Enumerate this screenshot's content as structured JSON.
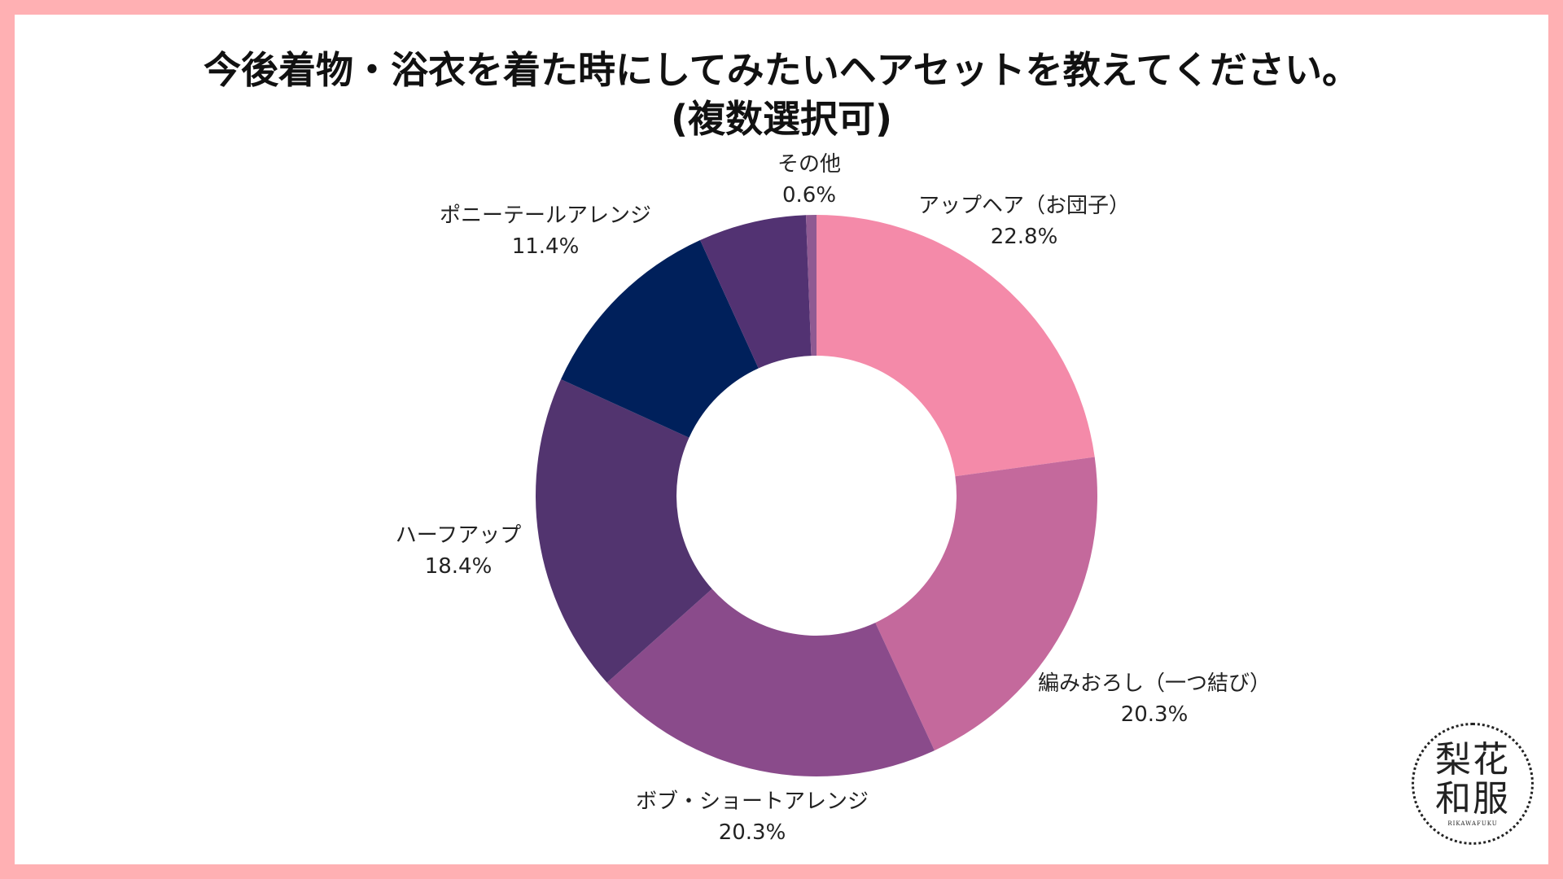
{
  "title": {
    "line1": "今後着物・浴衣を着た時にしてみたいヘアセットを教えてください。",
    "line2": "(複数選択可)"
  },
  "chart_data": {
    "type": "pie",
    "donut": true,
    "title": "今後着物・浴衣を着た時にしてみたいヘアセットを教えてください。(複数選択可)",
    "slices": [
      {
        "label": "アップヘア（お団子）",
        "value": 22.8,
        "value_label": "22.8%",
        "color": "#f48aa9"
      },
      {
        "label": "編みおろし（一つ結び）",
        "value": 20.3,
        "value_label": "20.3%",
        "color": "#c4699c"
      },
      {
        "label": "ボブ・ショートアレンジ",
        "value": 20.3,
        "value_label": "20.3%",
        "color": "#8a4b8b"
      },
      {
        "label": "ハーフアップ",
        "value": 18.4,
        "value_label": "18.4%",
        "color": "#52346f"
      },
      {
        "label": "ポニーテールアレンジ",
        "value": 11.4,
        "value_label": "11.4%",
        "color": "#00205b"
      },
      {
        "label": "",
        "value": 6.2,
        "value_label": "",
        "color": "#523272"
      },
      {
        "label": "その他",
        "value": 0.6,
        "value_label": "0.6%",
        "color": "#8f5a92"
      }
    ]
  },
  "logo": {
    "line1": "梨花",
    "line2": "和服",
    "small": "RIKAWAFUKU"
  }
}
